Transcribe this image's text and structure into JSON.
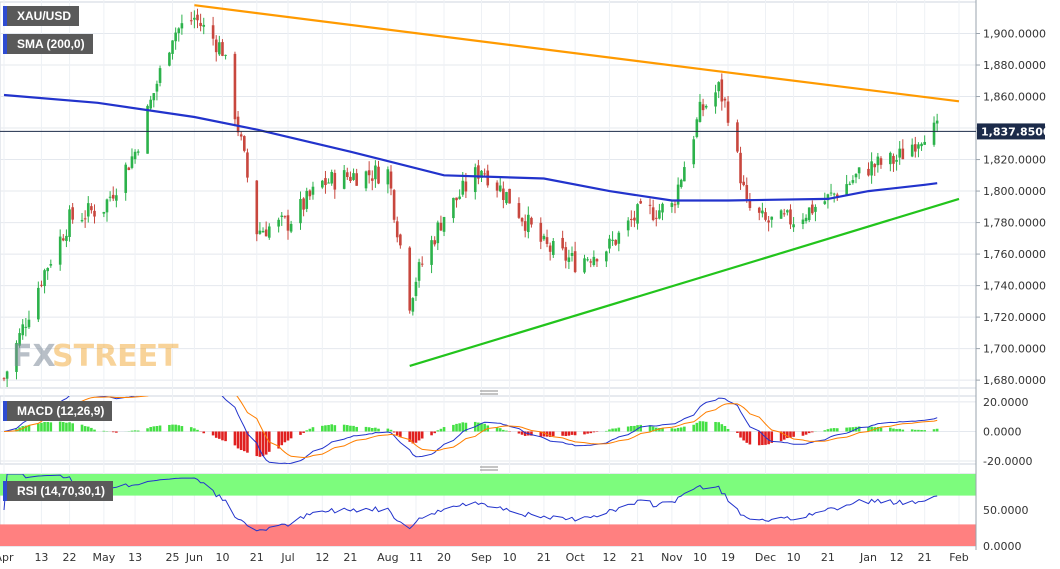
{
  "legend": {
    "symbol": "XAU/USD",
    "sma": "SMA (200,0)",
    "macd": "MACD (12,26,9)",
    "rsi": "RSI (14,70,30,1)"
  },
  "watermark": {
    "fx": "FX",
    "street": "STREET"
  },
  "current_price": "1,837.8500",
  "colors": {
    "bull": "#2cb24b",
    "bear": "#c8473e",
    "sma": "#2233cc",
    "resistance": "#ff9a00",
    "support": "#22c41c",
    "macd_line": "#2233cc",
    "signal_line": "#ff7f00",
    "hist_pos": "#44e044",
    "hist_neg": "#e02020",
    "rsi_line": "#2233cc",
    "overbought": "#7dfc7d",
    "oversold": "#ff8080"
  },
  "chart_data": [
    {
      "type": "candlestick",
      "title": "XAU/USD",
      "ylim": [
        1675,
        1920
      ],
      "y_ticks": [
        "1,680.0000",
        "1,700.0000",
        "1,720.0000",
        "1,740.0000",
        "1,760.0000",
        "1,780.0000",
        "1,800.0000",
        "1,820.0000",
        "1,840.0000",
        "1,860.0000",
        "1,880.0000",
        "1,900.0000"
      ],
      "y_tick_values": [
        1680,
        1700,
        1720,
        1740,
        1760,
        1780,
        1800,
        1820,
        1840,
        1860,
        1880,
        1900
      ],
      "x_tick_labels": [
        "Apr",
        "13",
        "22",
        "May",
        "13",
        "25",
        "Jun",
        "10",
        "21",
        "Jul",
        "12",
        "21",
        "Aug",
        "11",
        "20",
        "Sep",
        "10",
        "21",
        "Oct",
        "12",
        "21",
        "Nov",
        "10",
        "19",
        "Dec",
        "10",
        "21",
        "Jan",
        "12",
        "21",
        "Feb"
      ],
      "x_tick_dates": [
        "2021-04-01",
        "2021-04-13",
        "2021-04-22",
        "2021-05-03",
        "2021-05-13",
        "2021-05-25",
        "2021-06-01",
        "2021-06-10",
        "2021-06-21",
        "2021-07-01",
        "2021-07-12",
        "2021-07-21",
        "2021-08-02",
        "2021-08-11",
        "2021-08-20",
        "2021-09-01",
        "2021-09-10",
        "2021-09-21",
        "2021-10-01",
        "2021-10-12",
        "2021-10-21",
        "2021-11-01",
        "2021-11-10",
        "2021-11-19",
        "2021-12-01",
        "2021-12-10",
        "2021-12-21",
        "2022-01-03",
        "2022-01-12",
        "2022-01-21",
        "2022-02-01"
      ],
      "series": [
        {
          "name": "SMA (200,0)",
          "type": "line",
          "points": [
            [
              "2021-04-01",
              1861
            ],
            [
              "2021-05-01",
              1856
            ],
            [
              "2021-06-01",
              1847
            ],
            [
              "2021-06-21",
              1839
            ],
            [
              "2021-07-21",
              1825
            ],
            [
              "2021-08-20",
              1810
            ],
            [
              "2021-09-21",
              1808
            ],
            [
              "2021-10-12",
              1800
            ],
            [
              "2021-11-01",
              1794
            ],
            [
              "2021-11-19",
              1794
            ],
            [
              "2021-12-21",
              1795
            ],
            [
              "2022-01-03",
              1800
            ],
            [
              "2022-01-21",
              1804
            ],
            [
              "2022-01-25",
              1805
            ]
          ]
        },
        {
          "name": "resistance trendline",
          "type": "line",
          "points": [
            [
              "2021-06-01",
              1918
            ],
            [
              "2021-11-16",
              1876
            ],
            [
              "2022-02-01",
              1857
            ]
          ]
        },
        {
          "name": "support trendline",
          "type": "line",
          "points": [
            [
              "2021-08-09",
              1689
            ],
            [
              "2021-12-15",
              1766
            ],
            [
              "2022-02-01",
              1795
            ]
          ]
        }
      ],
      "current_value": 1837.85,
      "key_points": {
        "low": [
          "2021-08-09",
          1689
        ],
        "high_jun": [
          "2021-06-01",
          1916
        ],
        "high_nov": [
          "2021-11-16",
          1877
        ]
      }
    },
    {
      "type": "line",
      "title": "MACD (12,26,9)",
      "ylim": [
        -22,
        24
      ],
      "y_ticks": [
        "20.0000",
        "0.0000",
        "-20.0000"
      ],
      "y_tick_values": [
        20,
        0,
        -20
      ]
    },
    {
      "type": "line",
      "title": "RSI (14,70,30,1)",
      "ylim": [
        0,
        100
      ],
      "y_ticks": [
        "50.0000",
        "0.0000"
      ],
      "y_tick_values": [
        50,
        0
      ],
      "bands": {
        "overbought": 70,
        "oversold": 30
      }
    }
  ]
}
